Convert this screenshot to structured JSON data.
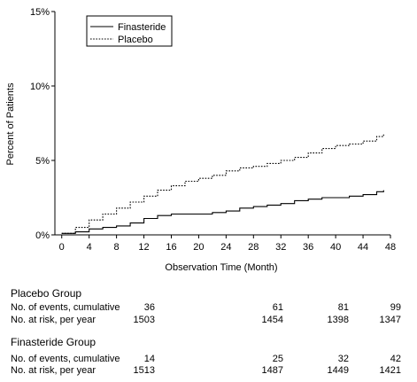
{
  "chart_data": {
    "type": "line",
    "xlabel": "Observation Time (Month)",
    "ylabel": "Percent of Patients",
    "xlim": [
      -1,
      48
    ],
    "ylim": [
      0,
      15
    ],
    "x_ticks": [
      "0",
      "4",
      "8",
      "12",
      "16",
      "20",
      "24",
      "28",
      "32",
      "36",
      "40",
      "44",
      "48"
    ],
    "y_ticks": [
      "0%",
      "5%",
      "10%",
      "15%"
    ],
    "legend_position": "top-left",
    "series": [
      {
        "name": "Finasteride",
        "style": "solid",
        "x": [
          0,
          2,
          4,
          6,
          8,
          10,
          12,
          14,
          16,
          18,
          20,
          22,
          24,
          26,
          28,
          30,
          32,
          34,
          36,
          38,
          40,
          42,
          44,
          46,
          47
        ],
        "y": [
          0.1,
          0.2,
          0.4,
          0.5,
          0.6,
          0.8,
          1.1,
          1.3,
          1.4,
          1.4,
          1.4,
          1.5,
          1.6,
          1.8,
          1.9,
          2.0,
          2.1,
          2.3,
          2.4,
          2.5,
          2.5,
          2.6,
          2.7,
          2.9,
          3.0
        ]
      },
      {
        "name": "Placebo",
        "style": "dotted",
        "x": [
          0,
          2,
          4,
          6,
          8,
          10,
          12,
          14,
          16,
          18,
          20,
          22,
          24,
          26,
          28,
          30,
          32,
          34,
          36,
          38,
          40,
          42,
          44,
          46,
          47
        ],
        "y": [
          0.1,
          0.5,
          1.0,
          1.4,
          1.8,
          2.2,
          2.6,
          3.0,
          3.3,
          3.6,
          3.8,
          4.0,
          4.3,
          4.5,
          4.6,
          4.8,
          5.0,
          5.2,
          5.5,
          5.8,
          6.0,
          6.1,
          6.3,
          6.6,
          6.8
        ]
      }
    ]
  },
  "table": {
    "placebo": {
      "title": "Placebo Group",
      "events_label": "No. of events, cumulative",
      "risk_label": "No. at risk, per year",
      "events": [
        "36",
        "61",
        "81",
        "99"
      ],
      "risk": [
        "1503",
        "1454",
        "1398",
        "1347"
      ]
    },
    "finasteride": {
      "title": "Finasteride Group",
      "events_label": "No. of events, cumulative",
      "risk_label": "No. at risk, per year",
      "events": [
        "14",
        "25",
        "32",
        "42"
      ],
      "risk": [
        "1513",
        "1487",
        "1449",
        "1421"
      ]
    }
  }
}
